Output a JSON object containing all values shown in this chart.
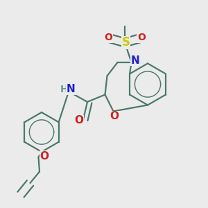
{
  "background_color": "#ebebeb",
  "bond_color": "#4a7a6a",
  "bond_width": 1.6,
  "fig_width": 3.0,
  "fig_height": 3.0,
  "dpi": 100,
  "colors": {
    "bond": "#4a7a6a",
    "N": "#2020cc",
    "S": "#cccc00",
    "O": "#cc2020",
    "NH_H": "#6a9a9a",
    "NH_N": "#2020cc"
  }
}
